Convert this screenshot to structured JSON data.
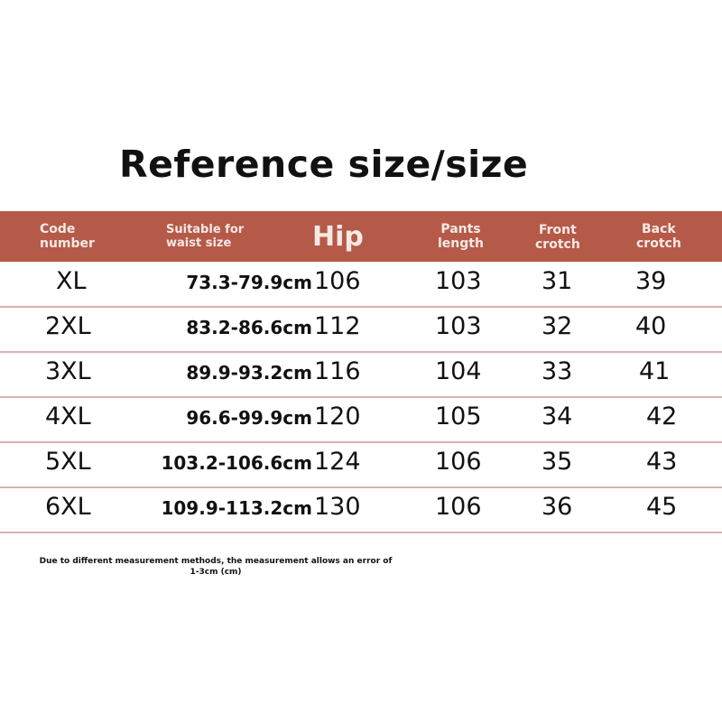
{
  "title": "Reference size/size",
  "header": {
    "code": [
      "Code",
      "number"
    ],
    "waist": [
      "Suitable for",
      "waist size"
    ],
    "hip": "Hip",
    "pants": [
      "Pants",
      "length"
    ],
    "front": [
      "Front",
      "crotch"
    ],
    "back": [
      "Back",
      "crotch"
    ],
    "color": "#b55a48"
  },
  "rows": [
    {
      "code": "XL",
      "waist": "73.3-79.9cm",
      "hip": "106",
      "pants": "103",
      "front": "31",
      "back": "39"
    },
    {
      "code": "2XL",
      "waist": "83.2-86.6cm",
      "hip": "112",
      "pants": "103",
      "front": "32",
      "back": "40"
    },
    {
      "code": "3XL",
      "waist": "89.9-93.2cm",
      "hip": "116",
      "pants": "104",
      "front": "33",
      "back": "41"
    },
    {
      "code": "4XL",
      "waist": "96.6-99.9cm",
      "hip": "120",
      "pants": "105",
      "front": "34",
      "back": "42"
    },
    {
      "code": "5XL",
      "waist": "103.2-106.6cm",
      "hip": "124",
      "pants": "106",
      "front": "35",
      "back": "43"
    },
    {
      "code": "6XL",
      "waist": "109.9-113.2cm",
      "hip": "130",
      "pants": "106",
      "front": "36",
      "back": "45"
    }
  ],
  "note": [
    "Due to different measurement methods, the measurement allows an error of",
    "1-3cm (cm)"
  ]
}
